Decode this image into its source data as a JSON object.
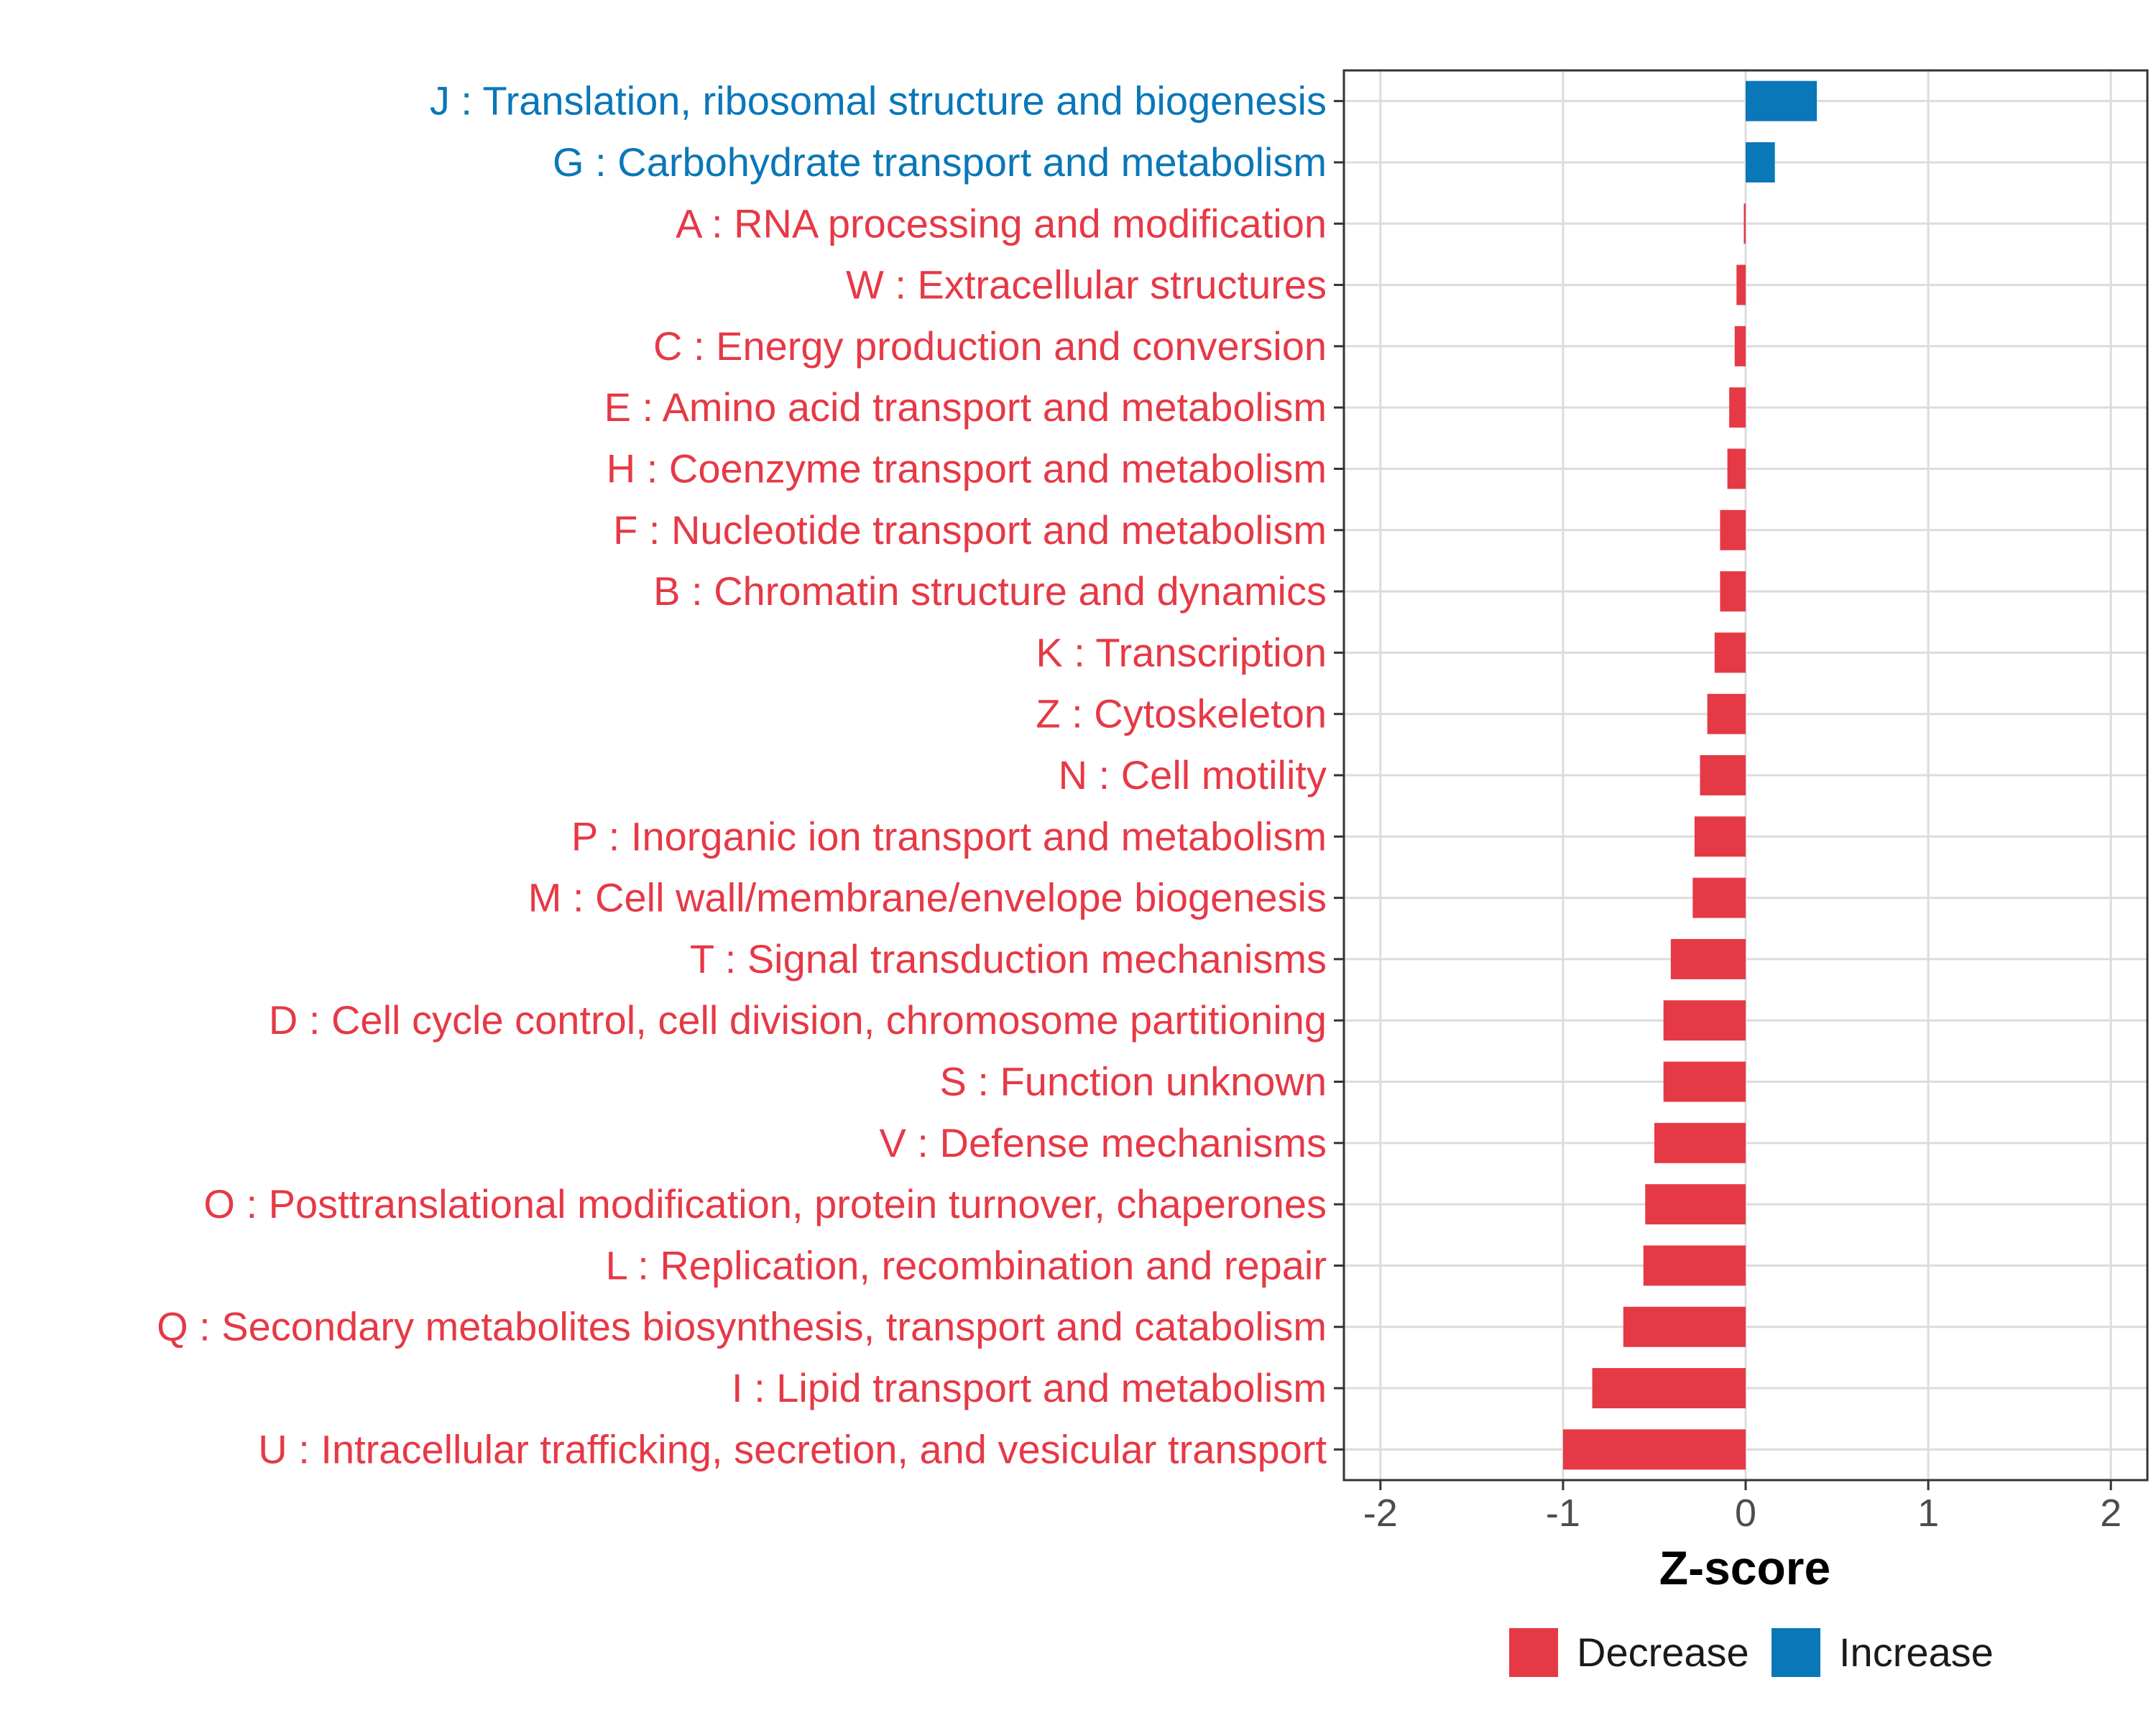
{
  "chart_data": {
    "type": "bar",
    "orientation": "horizontal",
    "xlabel": "Z-score",
    "xlim": [
      -2.2,
      2.2
    ],
    "xticks": [
      -2,
      -1,
      0,
      1,
      2
    ],
    "xtick_labels": [
      "-2",
      "-1",
      "0",
      "1",
      "2"
    ],
    "grid": true,
    "legend_position": "bottom",
    "legend": [
      {
        "label": "Decrease",
        "color": "#e63946"
      },
      {
        "label": "Increase",
        "color": "#0a77b8"
      }
    ],
    "colors": {
      "Decrease": "#e63946",
      "Increase": "#0a77b8"
    },
    "bars": [
      {
        "label": "J : Translation, ribosomal structure and biogenesis",
        "value": 0.39,
        "direction": "Increase"
      },
      {
        "label": "G : Carbohydrate transport and metabolism",
        "value": 0.16,
        "direction": "Increase"
      },
      {
        "label": "A : RNA processing and modification",
        "value": -0.01,
        "direction": "Decrease"
      },
      {
        "label": "W : Extracellular structures",
        "value": -0.05,
        "direction": "Decrease"
      },
      {
        "label": "C : Energy production and conversion",
        "value": -0.06,
        "direction": "Decrease"
      },
      {
        "label": "E : Amino acid transport and metabolism",
        "value": -0.09,
        "direction": "Decrease"
      },
      {
        "label": "H : Coenzyme transport and metabolism",
        "value": -0.1,
        "direction": "Decrease"
      },
      {
        "label": "F : Nucleotide transport and metabolism",
        "value": -0.14,
        "direction": "Decrease"
      },
      {
        "label": "B : Chromatin structure and dynamics",
        "value": -0.14,
        "direction": "Decrease"
      },
      {
        "label": "K : Transcription",
        "value": -0.17,
        "direction": "Decrease"
      },
      {
        "label": "Z : Cytoskeleton",
        "value": -0.21,
        "direction": "Decrease"
      },
      {
        "label": "N : Cell motility",
        "value": -0.25,
        "direction": "Decrease"
      },
      {
        "label": "P : Inorganic ion transport and metabolism",
        "value": -0.28,
        "direction": "Decrease"
      },
      {
        "label": "M : Cell wall/membrane/envelope biogenesis",
        "value": -0.29,
        "direction": "Decrease"
      },
      {
        "label": "T : Signal transduction mechanisms",
        "value": -0.41,
        "direction": "Decrease"
      },
      {
        "label": "D : Cell cycle control, cell division, chromosome partitioning",
        "value": -0.45,
        "direction": "Decrease"
      },
      {
        "label": "S : Function unknown",
        "value": -0.45,
        "direction": "Decrease"
      },
      {
        "label": "V : Defense mechanisms",
        "value": -0.5,
        "direction": "Decrease"
      },
      {
        "label": "O : Posttranslational modification, protein turnover, chaperones",
        "value": -0.55,
        "direction": "Decrease"
      },
      {
        "label": "L : Replication, recombination and repair",
        "value": -0.56,
        "direction": "Decrease"
      },
      {
        "label": "Q : Secondary metabolites biosynthesis, transport and catabolism",
        "value": -0.67,
        "direction": "Decrease"
      },
      {
        "label": "I : Lipid transport and metabolism",
        "value": -0.84,
        "direction": "Decrease"
      },
      {
        "label": "U : Intracellular trafficking, secretion, and vesicular transport",
        "value": -1.0,
        "direction": "Decrease"
      }
    ]
  }
}
